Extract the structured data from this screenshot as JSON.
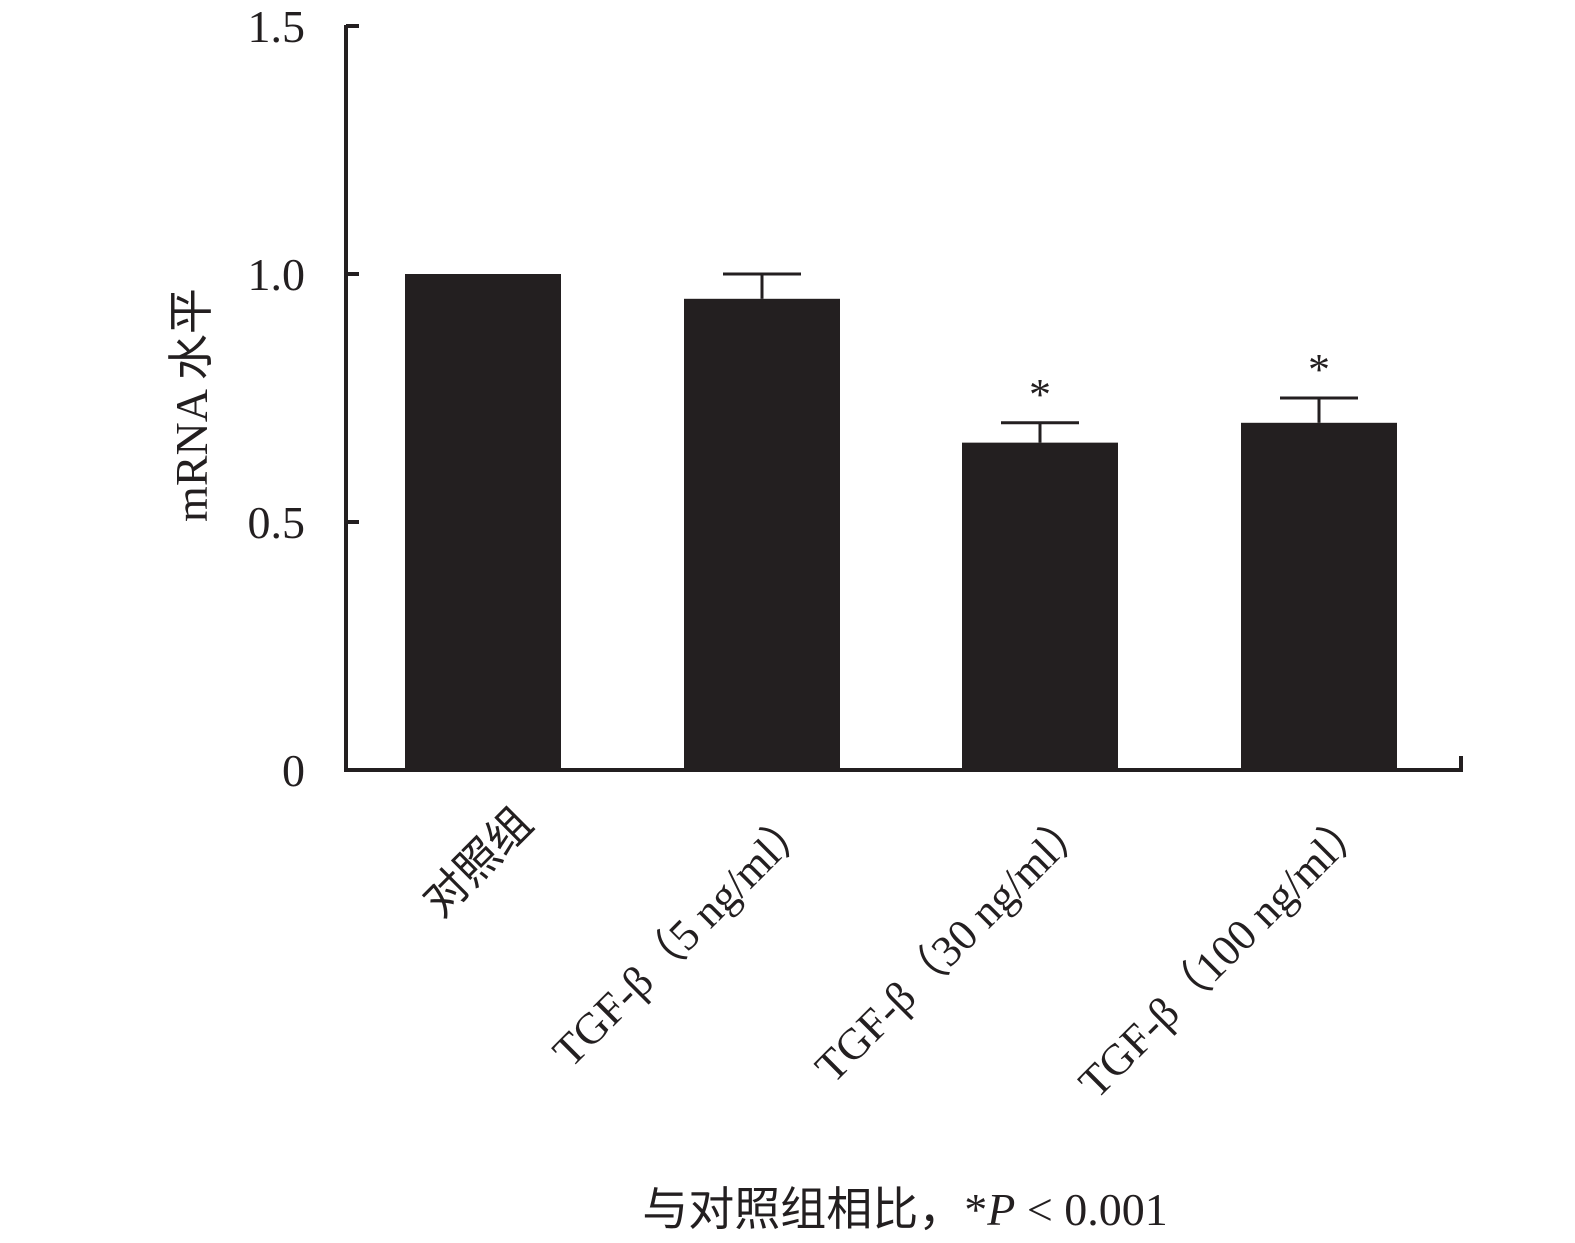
{
  "chart_data": {
    "type": "bar",
    "categories": [
      "对照组",
      "TGF-β（5 ng/ml）",
      "TGF-β（30 ng/ml）",
      "TGF-β（100 ng/ml）"
    ],
    "values": [
      1.0,
      0.95,
      0.66,
      0.7
    ],
    "error_upper": [
      null,
      1.0,
      0.7,
      0.75
    ],
    "significance": [
      "",
      "",
      "*",
      "*"
    ],
    "ylabel": "mRNA 水平",
    "xlabel": "",
    "ylim": [
      0,
      1.5
    ],
    "yticks": [
      0,
      0.5,
      1.0,
      1.5
    ],
    "ytick_labels": [
      "0",
      "0.5",
      "1.0",
      "1.5"
    ],
    "grid": false,
    "footnote": "与对照组相比，*P < 0.001",
    "bar_color": "#231f20"
  }
}
